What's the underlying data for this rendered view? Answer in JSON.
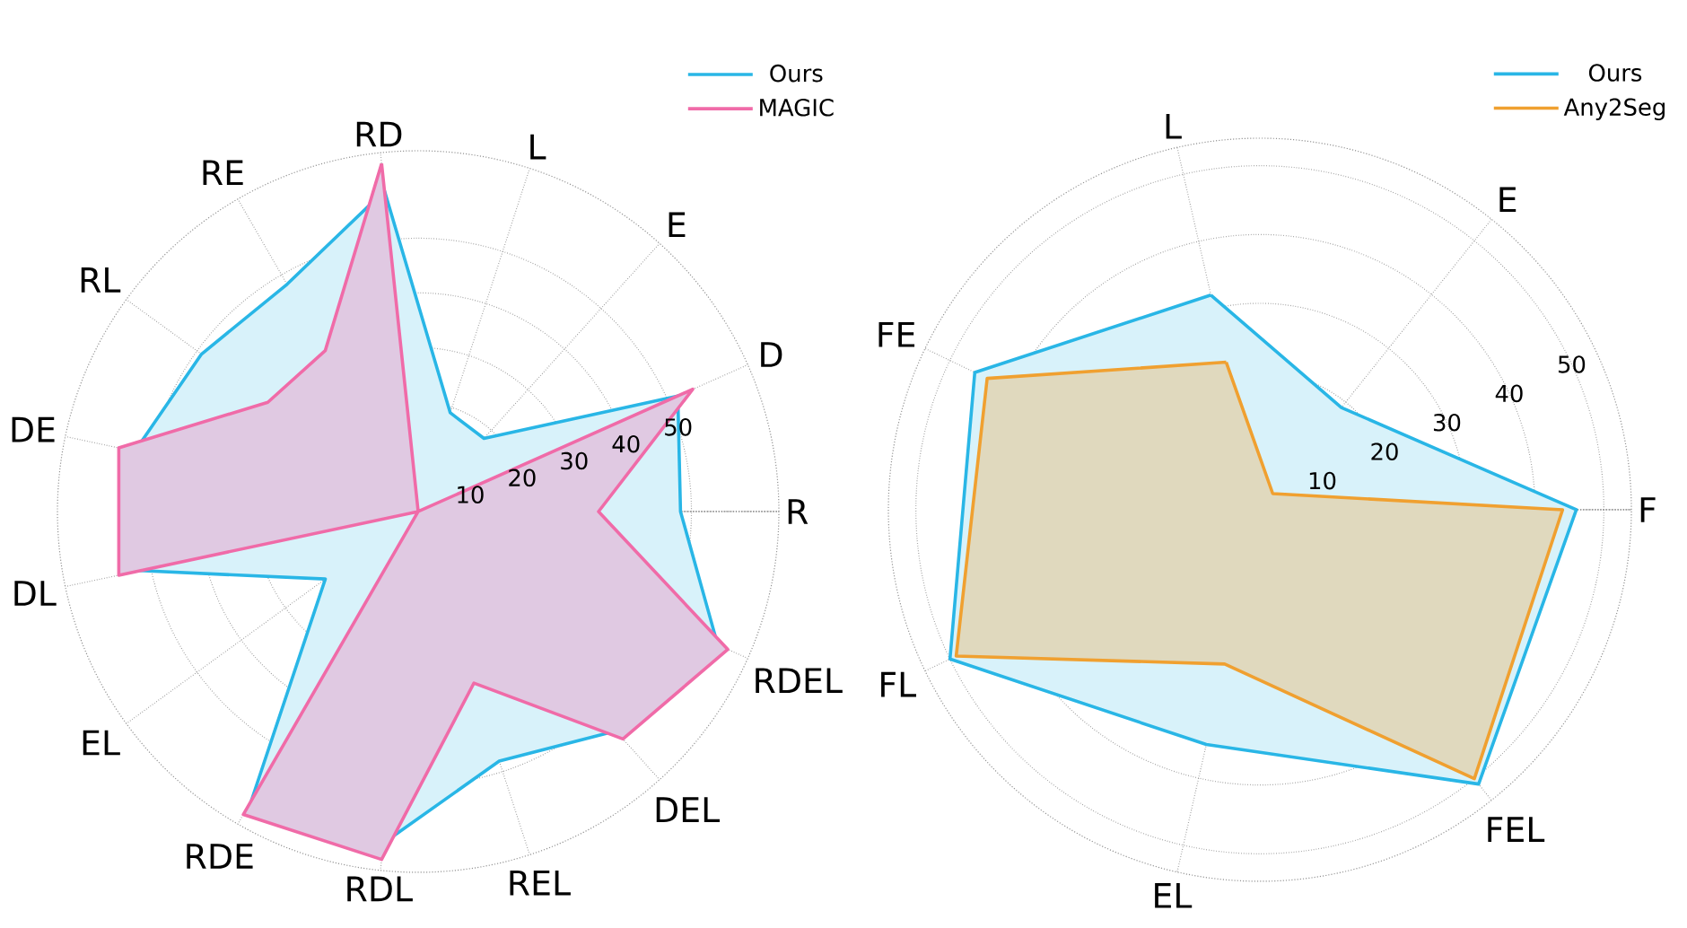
{
  "chart_data": [
    {
      "type": "radar",
      "categories": [
        "RD",
        "L",
        "E",
        "D",
        "R",
        "RDEL",
        "DEL",
        "REL",
        "RDL",
        "RDE",
        "EL",
        "DL",
        "DE",
        "RL",
        "RE"
      ],
      "series": [
        {
          "name": "Ours",
          "color": "#29b6e6",
          "values": [
            59,
            19,
            18,
            52,
            48,
            60,
            54,
            48,
            61,
            61,
            21,
            52,
            53,
            49,
            48
          ]
        },
        {
          "name": "MAGIC",
          "color": "#f06ba8",
          "values": [
            64,
            0,
            0,
            55,
            33,
            62,
            56,
            33,
            64,
            64,
            0,
            56,
            56,
            34,
            34
          ]
        }
      ],
      "ylim": [
        0,
        66
      ],
      "yticks": [
        10,
        20,
        30,
        40,
        50
      ],
      "grid": true,
      "legend": "top right"
    },
    {
      "type": "radar",
      "categories": [
        "L",
        "E",
        "F",
        "FEL",
        "EL",
        "FL",
        "FE"
      ],
      "series": [
        {
          "name": "Ours",
          "color": "#29b6e6",
          "values": [
            32,
            19,
            46,
            51,
            35,
            50,
            46
          ]
        },
        {
          "name": "Any2Seg",
          "color": "#f0a030",
          "values": [
            22,
            3,
            44,
            50,
            23,
            49,
            44
          ]
        }
      ],
      "ylim": [
        0,
        54
      ],
      "yticks": [
        10,
        20,
        30,
        40,
        50
      ],
      "grid": true,
      "legend": "top right"
    }
  ]
}
